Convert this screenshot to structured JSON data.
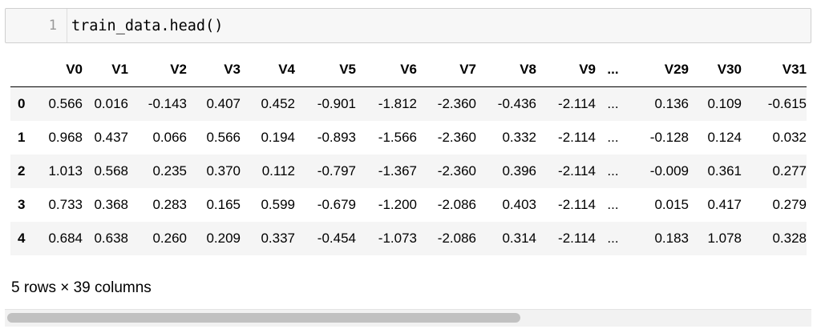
{
  "code_cell": {
    "line_number": "1",
    "code": "train_data.head()"
  },
  "dataframe": {
    "columns": [
      "V0",
      "V1",
      "V2",
      "V3",
      "V4",
      "V5",
      "V6",
      "V7",
      "V8",
      "V9",
      "...",
      "V29",
      "V30",
      "V31"
    ],
    "rows": [
      {
        "index": "0",
        "values": [
          "0.566",
          "0.016",
          "-0.143",
          "0.407",
          "0.452",
          "-0.901",
          "-1.812",
          "-2.360",
          "-0.436",
          "-2.114",
          "...",
          "0.136",
          "0.109",
          "-0.615"
        ]
      },
      {
        "index": "1",
        "values": [
          "0.968",
          "0.437",
          "0.066",
          "0.566",
          "0.194",
          "-0.893",
          "-1.566",
          "-2.360",
          "0.332",
          "-2.114",
          "...",
          "-0.128",
          "0.124",
          "0.032"
        ]
      },
      {
        "index": "2",
        "values": [
          "1.013",
          "0.568",
          "0.235",
          "0.370",
          "0.112",
          "-0.797",
          "-1.367",
          "-2.360",
          "0.396",
          "-2.114",
          "...",
          "-0.009",
          "0.361",
          "0.277"
        ]
      },
      {
        "index": "3",
        "values": [
          "0.733",
          "0.368",
          "0.283",
          "0.165",
          "0.599",
          "-0.679",
          "-1.200",
          "-2.086",
          "0.403",
          "-2.114",
          "...",
          "0.015",
          "0.417",
          "0.279"
        ]
      },
      {
        "index": "4",
        "values": [
          "0.684",
          "0.638",
          "0.260",
          "0.209",
          "0.337",
          "-0.454",
          "-1.073",
          "-2.086",
          "0.314",
          "-2.114",
          "...",
          "0.183",
          "1.078",
          "0.328"
        ]
      }
    ],
    "summary": "5 rows × 39 columns"
  },
  "scrollbar": {
    "visible_fraction": 0.64
  }
}
